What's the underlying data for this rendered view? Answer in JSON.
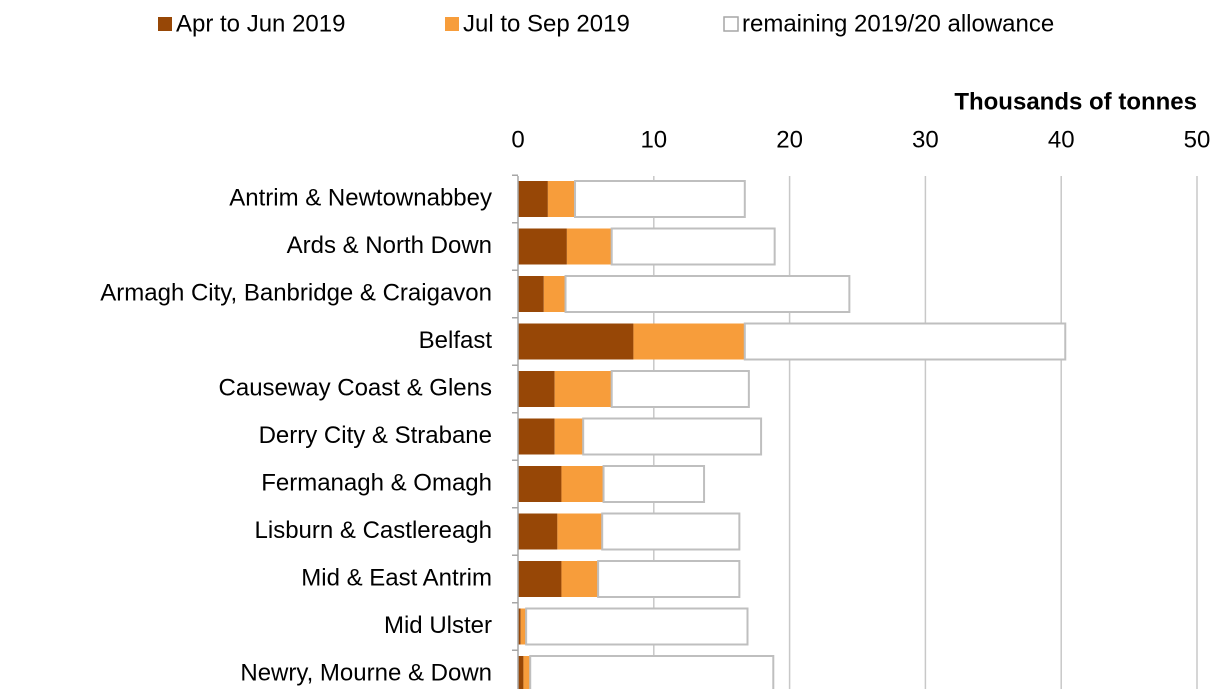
{
  "chart_data": {
    "type": "stacked-bar-horizontal",
    "x_axis_label": "Thousands of tonnes",
    "categories": [
      "Antrim & Newtownabbey",
      "Ards & North Down",
      "Armagh City, Banbridge & Craigavon",
      "Belfast",
      "Causeway Coast & Glens",
      "Derry City & Strabane",
      "Fermanagh & Omagh",
      "Lisburn & Castlereagh",
      "Mid & East Antrim",
      "Mid Ulster",
      "Newry, Mourne & Down"
    ],
    "series": [
      {
        "name": "Apr to Jun 2019",
        "color": "#974706",
        "values": [
          2.2,
          3.6,
          1.9,
          8.5,
          2.7,
          2.7,
          3.2,
          2.9,
          3.2,
          0.2,
          0.4
        ]
      },
      {
        "name": "Jul to Sep 2019",
        "color": "#f79d3b",
        "values": [
          2.0,
          3.3,
          1.6,
          8.2,
          4.2,
          2.1,
          3.1,
          3.3,
          2.7,
          0.4,
          0.5
        ]
      },
      {
        "name": "remaining 2019/20 allowance",
        "color": "#ffffff",
        "values": [
          12.5,
          12.0,
          20.9,
          23.6,
          10.1,
          13.1,
          7.4,
          10.1,
          10.4,
          16.3,
          17.9
        ]
      }
    ],
    "xlim": [
      0,
      50
    ],
    "xticks": [
      0,
      10,
      20,
      30,
      40,
      50
    ],
    "grid": true,
    "legend_position": "top"
  }
}
